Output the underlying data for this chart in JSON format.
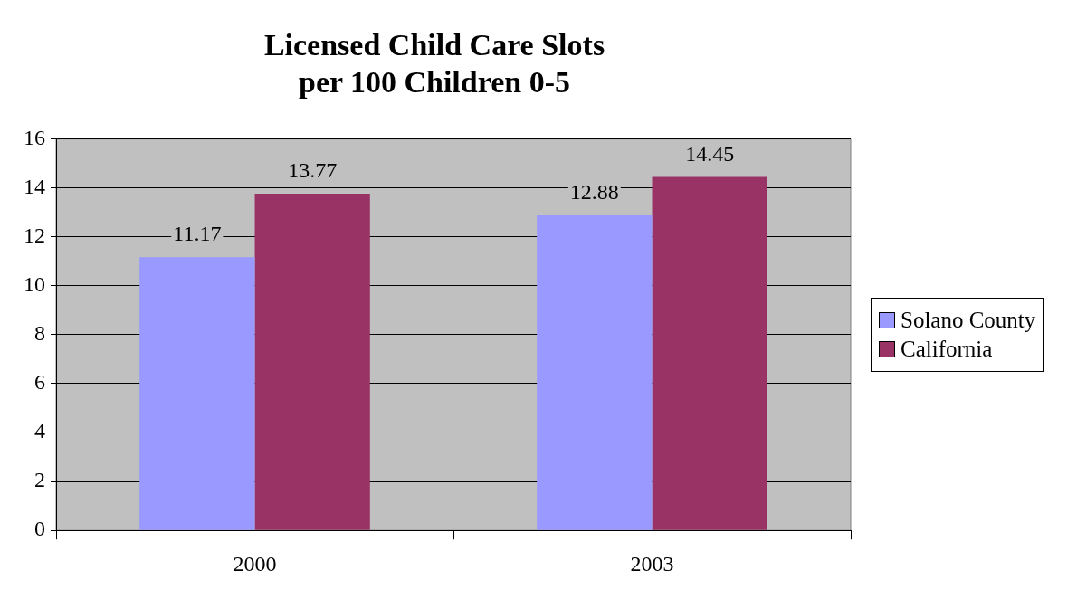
{
  "chart_data": {
    "type": "bar",
    "title": "Licensed Child Care Slots\nper 100 Children 0-5",
    "categories": [
      "2000",
      "2003"
    ],
    "series": [
      {
        "name": "Solano County",
        "color": "#9999ff",
        "values": [
          11.17,
          12.88
        ]
      },
      {
        "name": "California",
        "color": "#993366",
        "values": [
          13.77,
          14.45
        ]
      }
    ],
    "ylim": [
      0,
      16
    ],
    "yticks": [
      0,
      2,
      4,
      6,
      8,
      10,
      12,
      14,
      16
    ],
    "grid": "y",
    "legend": "right",
    "data_labels": true
  }
}
